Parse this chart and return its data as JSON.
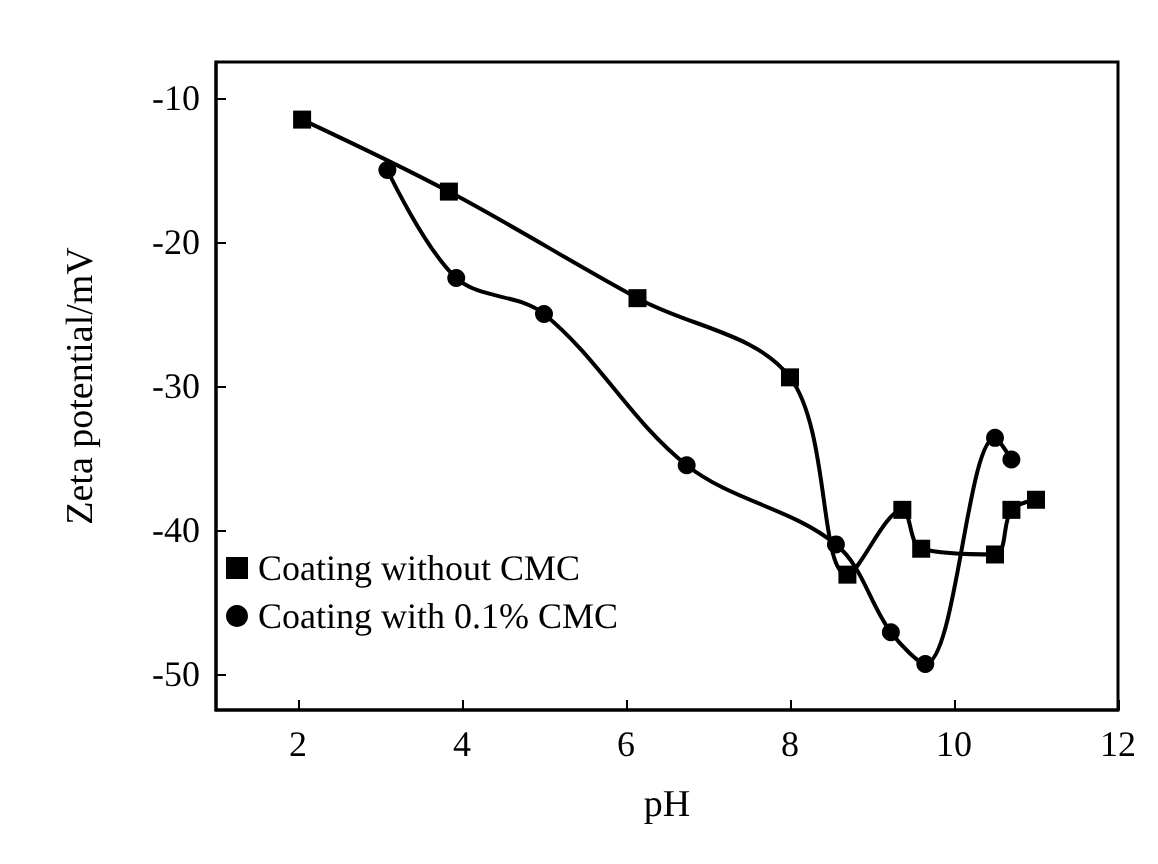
{
  "chart_data": {
    "type": "line",
    "xlabel": "pH",
    "ylabel": "Zeta potential/mV",
    "xlim": [
      1,
      12
    ],
    "xticks": [
      2,
      4,
      6,
      8,
      10,
      12
    ],
    "ylim": [
      -52.5,
      -7.5
    ],
    "yticks": [
      -10,
      -20,
      -30,
      -40,
      -50
    ],
    "grid": false,
    "legend": "bottom left",
    "line_style": "solid",
    "series": [
      {
        "name": "Coating without CMC",
        "color": "#000000",
        "marker": "square",
        "x": [
          2.05,
          3.84,
          6.14,
          8.0,
          8.7,
          9.37,
          9.6,
          10.5,
          10.7,
          11.0
        ],
        "values": [
          -11.5,
          -16.5,
          -23.9,
          -29.4,
          -43.1,
          -38.6,
          -41.3,
          -41.7,
          -38.6,
          -37.9
        ]
      },
      {
        "name": "Coating with 0.1% CMC",
        "color": "#000000",
        "marker": "circle",
        "x": [
          3.09,
          3.93,
          5.0,
          6.74,
          8.56,
          9.23,
          9.65,
          10.5,
          10.7
        ],
        "values": [
          -15.0,
          -22.5,
          -25.0,
          -35.5,
          -41.0,
          -47.1,
          -49.3,
          -33.6,
          -35.1
        ]
      }
    ]
  }
}
